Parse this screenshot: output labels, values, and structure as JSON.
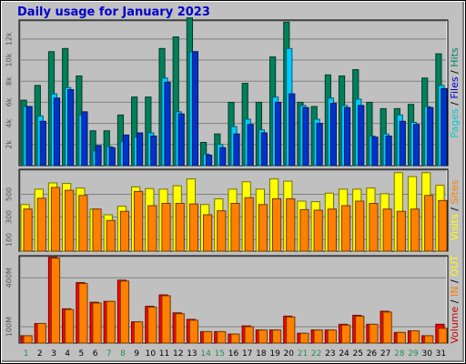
{
  "title": "Daily usage for January 2023",
  "colors": {
    "pages": "#0033cc",
    "files": "#00ccff",
    "hits": "#00805b",
    "visits": "#ff8000",
    "sites": "#ffff00",
    "kin": "#ff4000",
    "kout": "#ff7f00",
    "volume": "#ff0000",
    "weekday_label": "#008040",
    "weekend_label": "#2e8b57",
    "plot_bg": "#c0c0c0"
  },
  "chart_data": [
    {
      "type": "bar",
      "title": "Daily usage for January 2023",
      "ylabel": "Pages / Files / Hits",
      "legend": [
        "Pages",
        "Files",
        "Hits"
      ],
      "x": [
        1,
        2,
        3,
        4,
        5,
        6,
        7,
        8,
        9,
        10,
        11,
        12,
        13,
        14,
        15,
        16,
        17,
        18,
        19,
        20,
        21,
        22,
        23,
        24,
        25,
        26,
        27,
        28,
        29,
        30,
        31
      ],
      "yticks": [
        "2k",
        "4k",
        "6k",
        "8k",
        "10k",
        "12k"
      ],
      "ylim": [
        0,
        13800
      ],
      "series": [
        {
          "name": "Hits",
          "values": [
            6200,
            7600,
            10800,
            11100,
            8500,
            3300,
            3300,
            4800,
            6500,
            6500,
            11100,
            12200,
            14000,
            2200,
            3000,
            6000,
            7800,
            6000,
            10300,
            13600,
            6000,
            5600,
            8600,
            8500,
            9100,
            6000,
            5400,
            5400,
            5800,
            8300,
            10600
          ]
        },
        {
          "name": "Files",
          "values": [
            5600,
            4700,
            6800,
            7400,
            4800,
            1400,
            1800,
            2300,
            2700,
            3100,
            8300,
            5100,
            10800,
            1100,
            2000,
            3700,
            4400,
            3400,
            6500,
            11100,
            5700,
            4400,
            6400,
            5700,
            6300,
            2800,
            3000,
            4800,
            4100,
            5600,
            7600
          ]
        },
        {
          "name": "Pages",
          "values": [
            5600,
            4200,
            6400,
            7200,
            5100,
            1900,
            1700,
            2900,
            3100,
            2800,
            7900,
            4900,
            10800,
            1000,
            1700,
            3000,
            3900,
            3100,
            6000,
            6800,
            5500,
            4000,
            5900,
            5500,
            5700,
            2700,
            2800,
            4200,
            3900,
            5500,
            7300
          ]
        }
      ]
    },
    {
      "type": "bar",
      "ylabel": "Visits / Sites",
      "legend": [
        "Visits",
        "Sites"
      ],
      "x": [
        1,
        2,
        3,
        4,
        5,
        6,
        7,
        8,
        9,
        10,
        11,
        12,
        13,
        14,
        15,
        16,
        17,
        18,
        19,
        20,
        21,
        22,
        23,
        24,
        25,
        26,
        27,
        28,
        29,
        30,
        31
      ],
      "yticks": [
        "100",
        "300",
        "500"
      ],
      "ylim": [
        0,
        720
      ],
      "series": [
        {
          "name": "Sites",
          "values": [
            410,
            545,
            600,
            595,
            555,
            370,
            320,
            395,
            565,
            550,
            545,
            575,
            635,
            410,
            460,
            545,
            610,
            545,
            635,
            615,
            440,
            435,
            510,
            545,
            545,
            555,
            505,
            690,
            655,
            690,
            580
          ]
        },
        {
          "name": "Visits",
          "values": [
            370,
            465,
            560,
            535,
            490,
            370,
            270,
            350,
            525,
            400,
            420,
            420,
            415,
            320,
            355,
            420,
            470,
            410,
            460,
            460,
            365,
            360,
            370,
            400,
            440,
            420,
            370,
            350,
            370,
            490,
            445
          ]
        }
      ]
    },
    {
      "type": "bar",
      "ylabel": "Volume / IN / OUT",
      "legend": [
        "Volume",
        "IN",
        "OUT"
      ],
      "x": [
        1,
        2,
        3,
        4,
        5,
        6,
        7,
        8,
        9,
        10,
        11,
        12,
        13,
        14,
        15,
        16,
        17,
        18,
        19,
        20,
        21,
        22,
        23,
        24,
        25,
        26,
        27,
        28,
        29,
        30,
        31
      ],
      "yticks": [
        "100M",
        "400M"
      ],
      "ylim": [
        0,
        535
      ],
      "series": [
        {
          "name": "Volume",
          "values": [
            45,
            120,
            525,
            210,
            370,
            250,
            255,
            385,
            130,
            225,
            295,
            185,
            145,
            70,
            70,
            55,
            105,
            80,
            80,
            165,
            60,
            80,
            80,
            115,
            170,
            115,
            195,
            65,
            75,
            45,
            115
          ]
        },
        {
          "name": "OUT",
          "values": [
            45,
            120,
            520,
            205,
            365,
            245,
            255,
            380,
            130,
            220,
            290,
            180,
            140,
            70,
            70,
            55,
            100,
            80,
            80,
            160,
            60,
            80,
            80,
            110,
            165,
            115,
            190,
            65,
            75,
            45,
            90
          ]
        }
      ]
    }
  ],
  "right_labels": {
    "top": [
      {
        "text": "Pages",
        "color": "#00cccc"
      },
      {
        "text": " / ",
        "color": "#000000"
      },
      {
        "text": "Files",
        "color": "#0000cc"
      },
      {
        "text": " / ",
        "color": "#000000"
      },
      {
        "text": "Hits",
        "color": "#00805b"
      }
    ],
    "middle": [
      {
        "text": "Visits",
        "color": "#ffff00"
      },
      {
        "text": " / ",
        "color": "#000000"
      },
      {
        "text": "Sites",
        "color": "#ff8000"
      }
    ],
    "bottom": [
      {
        "text": "Volume",
        "color": "#cc0000"
      },
      {
        "text": " / ",
        "color": "#000000"
      },
      {
        "text": "IN",
        "color": "#ff8000"
      },
      {
        "text": " / ",
        "color": "#000000"
      },
      {
        "text": "OUT",
        "color": "#ffff00"
      }
    ]
  },
  "days": [
    "1",
    "2",
    "3",
    "4",
    "5",
    "6",
    "7",
    "8",
    "9",
    "10",
    "11",
    "12",
    "13",
    "14",
    "15",
    "16",
    "17",
    "18",
    "19",
    "20",
    "21",
    "22",
    "23",
    "24",
    "25",
    "26",
    "27",
    "28",
    "29",
    "30",
    "31"
  ],
  "weekend_days": [
    1,
    7,
    8,
    14,
    15,
    21,
    22,
    28,
    29
  ]
}
